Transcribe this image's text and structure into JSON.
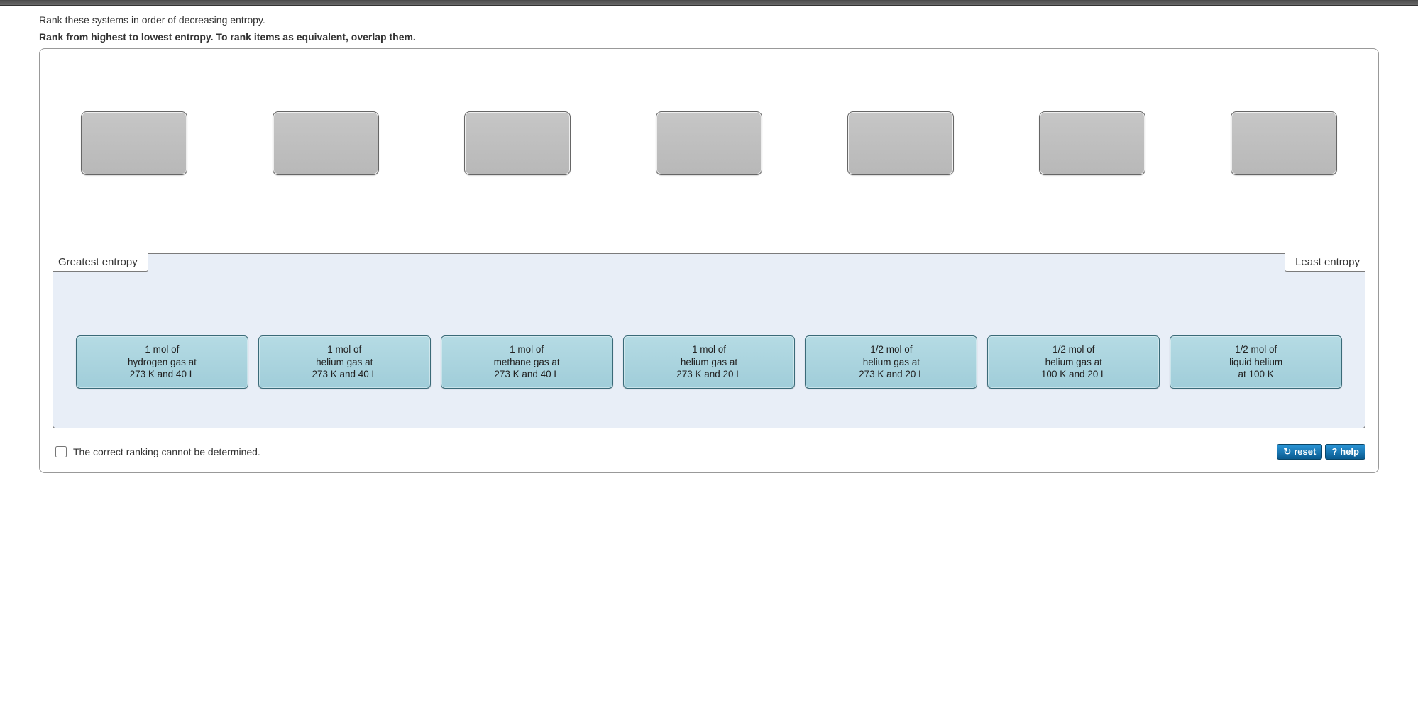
{
  "instructions": {
    "line1": "Rank these systems in order of decreasing entropy.",
    "line2": "Rank from highest to lowest entropy. To rank items as equivalent, overlap them."
  },
  "rank_labels": {
    "left": "Greatest entropy",
    "right": "Least entropy"
  },
  "slots_count": 7,
  "items": [
    {
      "l1": "1 mol of",
      "l2": "hydrogen gas at",
      "l3": "273 K and 40 L"
    },
    {
      "l1": "1 mol of",
      "l2": "helium gas at",
      "l3": "273 K and 40 L"
    },
    {
      "l1": "1 mol of",
      "l2": "methane gas at",
      "l3": "273 K and 40 L"
    },
    {
      "l1": "1 mol of",
      "l2": "helium gas at",
      "l3": "273 K and 20 L"
    },
    {
      "l1": "1/2 mol of",
      "l2": "helium gas at",
      "l3": "273 K and 20 L"
    },
    {
      "l1": "1/2 mol of",
      "l2": "helium gas at",
      "l3": "100 K and 20 L"
    },
    {
      "l1": "1/2 mol of",
      "l2": "liquid helium",
      "l3": "at 100 K"
    }
  ],
  "checkbox_label": "The correct ranking cannot be determined.",
  "buttons": {
    "reset": "reset",
    "help": "help"
  },
  "colors": {
    "panel_bg": "#e8eef7",
    "tile_bg_top": "#b5dbe4",
    "tile_bg_bottom": "#a0cdd9",
    "tile_border": "#3a6a78",
    "slot_bg": "#c0c0c0",
    "btn_bg_top": "#2b95d6",
    "btn_bg_bottom": "#0a5b90"
  }
}
